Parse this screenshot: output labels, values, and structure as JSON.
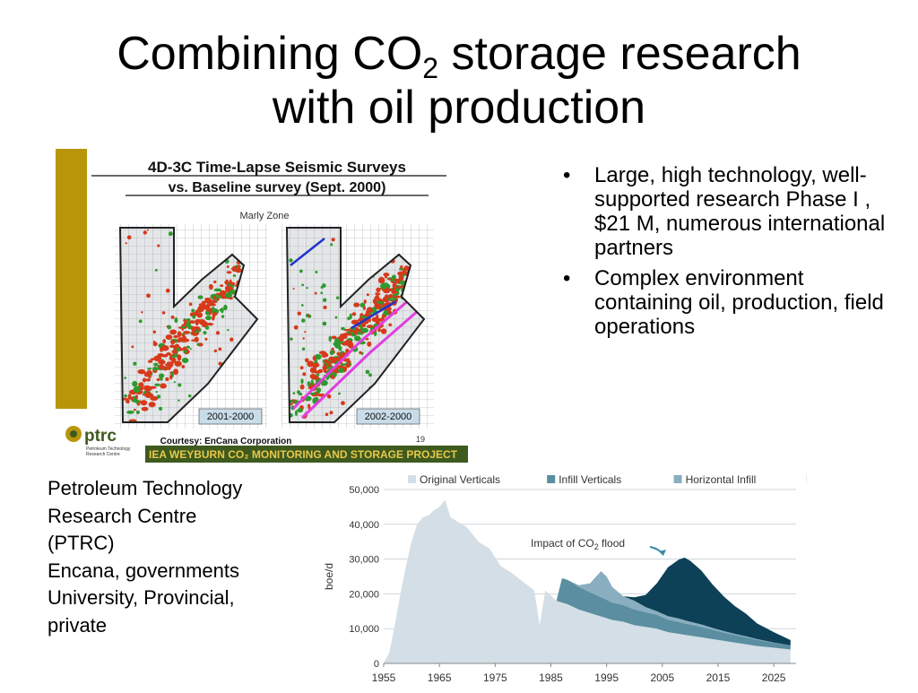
{
  "slide": {
    "title_part1": "Combining CO",
    "title_sub": "2",
    "title_part2": " storage research",
    "title_line2": "with oil production"
  },
  "seismic": {
    "title_line1": "4D-3C Time-Lapse Seismic Surveys",
    "title_line2": "vs. Baseline survey (Sept. 2000)",
    "zone_label": "Marly Zone",
    "label_left": "2001-2000",
    "label_right": "2002-2000",
    "courtesy": "Courtesy: EnCana Corporation",
    "page_number": "19",
    "logo_text": "ptrc",
    "logo_subtext_1": "Petroleum Technology",
    "logo_subtext_2": "Research Centre",
    "banner_text": "IEA WEYBURN CO₂ MONITORING AND STORAGE PROJECT",
    "colors": {
      "gold_bar": "#B8960A",
      "banner_green": "#3E5A1E",
      "banner_text": "#E8C84A",
      "anomaly_red": "#D63A1A",
      "anomaly_green": "#2E9A2E",
      "injector_magenta": "#E040E0",
      "label_bg": "#C9DCE9"
    }
  },
  "bullets": [
    "Large, high technology, well-supported research Phase I , $21 M, numerous international partners",
    "Complex environment containing oil, production, field operations"
  ],
  "org_text": [
    "Petroleum Technology",
    "Research Centre",
    "(PTRC)",
    "Encana, governments",
    "University, Provincial,",
    "private"
  ],
  "chart_data": {
    "type": "area",
    "stacked": true,
    "ylabel": "boe/d",
    "xlabel": "",
    "ylim": [
      0,
      50000
    ],
    "xlim": [
      1955,
      2029
    ],
    "y_ticks": [
      "0",
      "10,000",
      "20,000",
      "30,000",
      "40,000",
      "50,000"
    ],
    "y_tick_values": [
      0,
      10000,
      20000,
      30000,
      40000,
      50000
    ],
    "x_ticks": [
      "1955",
      "1965",
      "1975",
      "1985",
      "1995",
      "2005",
      "2015",
      "2025"
    ],
    "x_tick_values": [
      1955,
      1965,
      1975,
      1985,
      1995,
      2005,
      2015,
      2025
    ],
    "grid": true,
    "legend_position": "top",
    "annotation": {
      "text_part1": "Impact of CO",
      "text_sub": "2",
      "text_part2": " flood",
      "x": 2006,
      "y": 31000
    },
    "x": [
      1955,
      1956,
      1957,
      1958,
      1959,
      1960,
      1961,
      1962,
      1963,
      1964,
      1965,
      1966,
      1967,
      1968,
      1969,
      1970,
      1972,
      1974,
      1976,
      1978,
      1980,
      1982,
      1983,
      1984,
      1986,
      1987,
      1988,
      1990,
      1992,
      1994,
      1995,
      1996,
      1998,
      2000,
      2002,
      2004,
      2006,
      2008,
      2009,
      2010,
      2012,
      2014,
      2016,
      2018,
      2020,
      2022,
      2025,
      2028
    ],
    "series": [
      {
        "name": "Original Verticals",
        "color": "#D3DEE6",
        "values": [
          200,
          3000,
          11000,
          20000,
          28000,
          35000,
          40000,
          42000,
          42500,
          44000,
          45000,
          47000,
          42000,
          41000,
          40000,
          39000,
          35000,
          33000,
          28000,
          26000,
          23500,
          21000,
          11000,
          21000,
          18000,
          17500,
          17000,
          15500,
          14500,
          13500,
          13000,
          12500,
          12000,
          11000,
          10500,
          10000,
          9000,
          8500,
          8200,
          8000,
          7500,
          7000,
          6500,
          6000,
          5500,
          5000,
          4500,
          4000
        ]
      },
      {
        "name": "Infill Verticals",
        "color": "#5A8EA0",
        "values": [
          0,
          0,
          0,
          0,
          0,
          0,
          0,
          0,
          0,
          0,
          0,
          0,
          0,
          0,
          0,
          0,
          0,
          0,
          0,
          0,
          0,
          0,
          0,
          0,
          0,
          7000,
          7000,
          6500,
          6000,
          5500,
          5300,
          5000,
          4800,
          4500,
          4200,
          4000,
          3600,
          3400,
          3300,
          3200,
          3000,
          2700,
          2400,
          2200,
          2000,
          1800,
          1400,
          1200
        ]
      },
      {
        "name": "Horizontal Infill",
        "color": "#88AEC0",
        "values": [
          0,
          0,
          0,
          0,
          0,
          0,
          0,
          0,
          0,
          0,
          0,
          0,
          0,
          0,
          0,
          0,
          0,
          0,
          0,
          0,
          0,
          0,
          0,
          0,
          0,
          0,
          0,
          500,
          2500,
          7500,
          6700,
          4500,
          2500,
          2500,
          1500,
          1000,
          1000,
          1000,
          900,
          800,
          700,
          500,
          400,
          300,
          300,
          200,
          100,
          0
        ]
      },
      {
        "name": "CO₂",
        "color": "#0D4157",
        "values": [
          0,
          0,
          0,
          0,
          0,
          0,
          0,
          0,
          0,
          0,
          0,
          0,
          0,
          0,
          0,
          0,
          0,
          0,
          0,
          0,
          0,
          0,
          0,
          0,
          0,
          0,
          0,
          0,
          0,
          0,
          0,
          0,
          0,
          1000,
          3500,
          8000,
          14000,
          17000,
          18000,
          17500,
          15500,
          12500,
          10000,
          8000,
          6500,
          4500,
          3000,
          1500
        ]
      }
    ]
  }
}
